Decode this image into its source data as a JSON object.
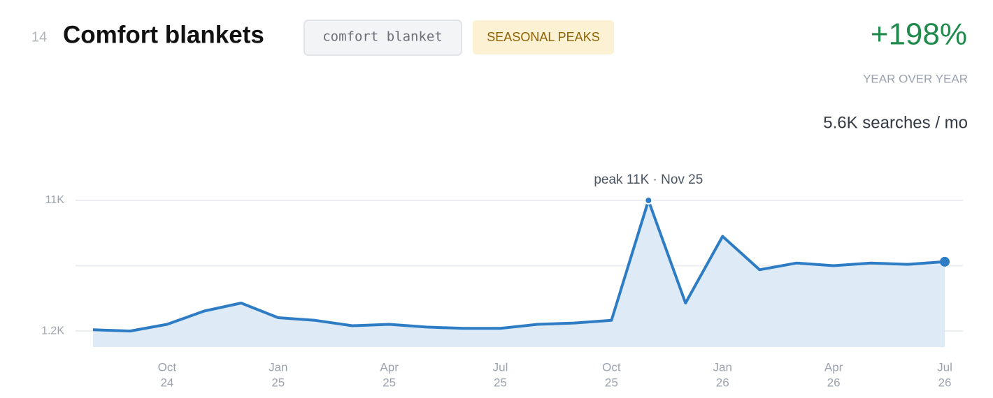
{
  "header": {
    "rank": "14",
    "title": "Comfort blankets",
    "keyword": "comfort blanket",
    "badge": "SEASONAL PEAKS",
    "growth": "+198%",
    "growth_label": "YEAR OVER YEAR",
    "volume": "5.6K searches / mo"
  },
  "chart_data": {
    "type": "line",
    "color": "#2e7dc4",
    "area_color": "#deebf7",
    "annotation": "peak 11K · Nov 25",
    "categories": [
      null,
      null,
      [
        "Oct",
        "24"
      ],
      null,
      null,
      [
        "Jan",
        "25"
      ],
      null,
      null,
      [
        "Apr",
        "25"
      ],
      null,
      null,
      [
        "Jul",
        "25"
      ],
      null,
      null,
      [
        "Oct",
        "25"
      ],
      null,
      null,
      [
        "Jan",
        "26"
      ],
      null,
      null,
      [
        "Apr",
        "26"
      ],
      null,
      null,
      [
        "Jul",
        "26"
      ]
    ],
    "values": [
      1300,
      1200,
      1700,
      2700,
      3300,
      2200,
      2000,
      1600,
      1700,
      1500,
      1400,
      1400,
      1700,
      1800,
      2000,
      11000,
      3300,
      8300,
      5800,
      6300,
      6100,
      6300,
      6200,
      6400
    ],
    "ylim": [
      0,
      11000
    ],
    "yticks": [
      {
        "value": 1200,
        "label": "1.2K"
      },
      {
        "value": 11000,
        "label": "11K"
      }
    ],
    "ygrid": [
      1200,
      6100,
      11000
    ],
    "grid": true
  }
}
